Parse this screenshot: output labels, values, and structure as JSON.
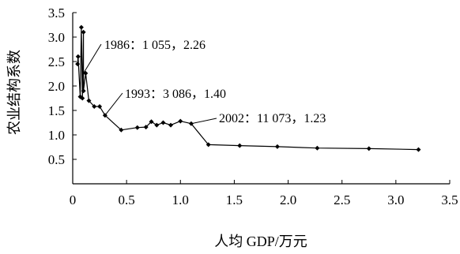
{
  "chart_data": {
    "type": "line",
    "title": "",
    "xlabel": "人均 GDP/万元",
    "ylabel": "农业结构系数",
    "xlim": [
      0,
      3.5
    ],
    "ylim": [
      0,
      3.5
    ],
    "x_ticks": [
      "0",
      "0.5",
      "1.0",
      "1.5",
      "2.0",
      "2.5",
      "3.0",
      "3.5"
    ],
    "y_ticks": [
      "0.5",
      "1.0",
      "1.5",
      "2.0",
      "2.5",
      "3.0",
      "3.5"
    ],
    "grid": false,
    "legend": "none",
    "series": [
      {
        "x": [
          0.045,
          0.05,
          0.07,
          0.08,
          0.09,
          0.1,
          0.1,
          0.12,
          0.15,
          0.2,
          0.25,
          0.3,
          0.45,
          0.6,
          0.68,
          0.73,
          0.78,
          0.84,
          0.91,
          1.0,
          1.1,
          1.26,
          1.55,
          1.9,
          2.27,
          2.75,
          3.21
        ],
        "y": [
          2.45,
          2.6,
          1.78,
          3.2,
          1.75,
          3.1,
          1.9,
          2.26,
          1.7,
          1.58,
          1.58,
          1.4,
          1.1,
          1.15,
          1.16,
          1.27,
          1.2,
          1.25,
          1.2,
          1.28,
          1.23,
          0.8,
          0.78,
          0.76,
          0.73,
          0.72,
          0.7
        ]
      }
    ],
    "annotations": [
      {
        "text": "1986：1 055，2.26",
        "x": 0.1,
        "y": 2.26
      },
      {
        "text": "1993：3 086，1.40",
        "x": 0.3,
        "y": 1.4
      },
      {
        "text": "2002：11 073，1.23",
        "x": 1.1,
        "y": 1.23
      }
    ]
  }
}
